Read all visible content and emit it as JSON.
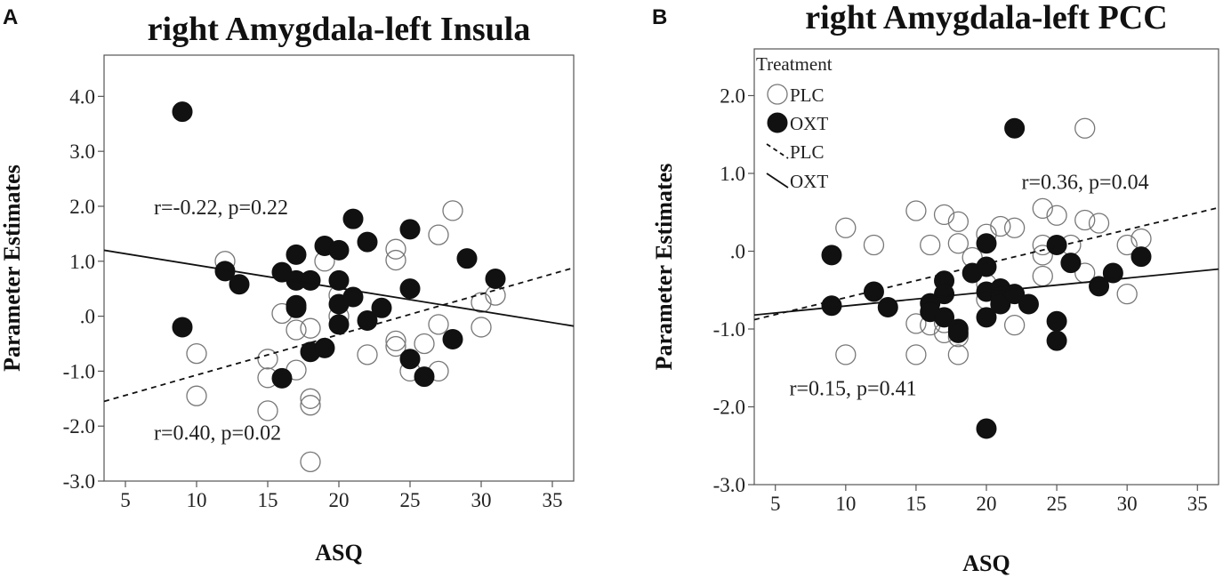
{
  "chart_data": [
    {
      "type": "scatter",
      "panel_label": "A",
      "title": "right Amygdala-left Insula",
      "xlabel": "ASQ",
      "ylabel": "Parameter Estimates",
      "xlim": [
        3.5,
        36.5
      ],
      "ylim": [
        -3.0,
        4.75
      ],
      "xticks": [
        5,
        10,
        15,
        20,
        25,
        30,
        35
      ],
      "xtick_labels": [
        "5",
        "10",
        "15",
        "20",
        "25",
        "30",
        "35"
      ],
      "yticks": [
        4.0,
        3.0,
        2.0,
        1.0,
        0.0,
        -1.0,
        -2.0,
        -3.0
      ],
      "ytick_labels": [
        "4.0",
        "3.0",
        "2.0",
        "1.0",
        ".0",
        "-1.0",
        "-2.0",
        "-3.0"
      ],
      "series": [
        {
          "name": "PLC",
          "marker": "open-circle",
          "points": [
            [
              10,
              -0.68
            ],
            [
              10,
              -1.45
            ],
            [
              12,
              1.0
            ],
            [
              15,
              -0.78
            ],
            [
              15,
              -1.12
            ],
            [
              15,
              -1.72
            ],
            [
              16,
              0.05
            ],
            [
              17,
              -0.25
            ],
            [
              17,
              -0.98
            ],
            [
              18,
              -0.22
            ],
            [
              18,
              -1.5
            ],
            [
              18,
              -1.62
            ],
            [
              18,
              -2.65
            ],
            [
              19,
              1.0
            ],
            [
              20,
              0.38
            ],
            [
              20,
              0.0
            ],
            [
              22,
              -0.7
            ],
            [
              24,
              1.22
            ],
            [
              24,
              1.02
            ],
            [
              24,
              -0.45
            ],
            [
              24,
              -0.55
            ],
            [
              25,
              -1.0
            ],
            [
              26,
              -0.5
            ],
            [
              27,
              1.48
            ],
            [
              27,
              -0.15
            ],
            [
              27,
              -1.0
            ],
            [
              28,
              1.92
            ],
            [
              30,
              0.25
            ],
            [
              30,
              -0.2
            ],
            [
              31,
              0.38
            ]
          ]
        },
        {
          "name": "OXT",
          "marker": "filled-circle",
          "points": [
            [
              9,
              3.72
            ],
            [
              9,
              -0.2
            ],
            [
              12,
              0.82
            ],
            [
              13,
              0.58
            ],
            [
              16,
              0.8
            ],
            [
              16,
              -1.13
            ],
            [
              17,
              1.12
            ],
            [
              17,
              0.65
            ],
            [
              17,
              0.2
            ],
            [
              17,
              0.15
            ],
            [
              18,
              0.65
            ],
            [
              18,
              -0.65
            ],
            [
              19,
              1.28
            ],
            [
              19,
              -0.58
            ],
            [
              20,
              1.2
            ],
            [
              20,
              0.65
            ],
            [
              20,
              0.22
            ],
            [
              20,
              -0.15
            ],
            [
              21,
              1.77
            ],
            [
              21,
              0.35
            ],
            [
              22,
              1.35
            ],
            [
              22,
              -0.08
            ],
            [
              23,
              0.15
            ],
            [
              25,
              1.58
            ],
            [
              25,
              0.5
            ],
            [
              25,
              -0.78
            ],
            [
              26,
              -1.1
            ],
            [
              28,
              -0.42
            ],
            [
              29,
              1.05
            ],
            [
              31,
              0.68
            ]
          ]
        }
      ],
      "fit_lines": [
        {
          "name": "PLC",
          "style": "dashed",
          "x": [
            3.5,
            36.5
          ],
          "y": [
            -1.55,
            0.88
          ]
        },
        {
          "name": "OXT",
          "style": "solid",
          "x": [
            3.5,
            36.5
          ],
          "y": [
            1.2,
            -0.18
          ]
        }
      ],
      "annotations": [
        {
          "text": "r=-0.22, p=0.22",
          "x": 7.0,
          "y": 1.85
        },
        {
          "text": "r=0.40, p=0.02",
          "x": 7.0,
          "y": -2.25
        }
      ]
    },
    {
      "type": "scatter",
      "panel_label": "B",
      "title": "right Amygdala-left PCC",
      "xlabel": "ASQ",
      "ylabel": "Parameter Estimates",
      "xlim": [
        3.5,
        36.5
      ],
      "ylim": [
        -3.0,
        2.6
      ],
      "xticks": [
        5,
        10,
        15,
        20,
        25,
        30,
        35
      ],
      "xtick_labels": [
        "5",
        "10",
        "15",
        "20",
        "25",
        "30",
        "35"
      ],
      "yticks": [
        2.0,
        1.0,
        0.0,
        -1.0,
        -2.0,
        -3.0
      ],
      "ytick_labels": [
        "2.0",
        "1.0",
        ".0",
        "-1.0",
        "-2.0",
        "-3.0"
      ],
      "legend": {
        "title": "Treatment",
        "entries": [
          {
            "label": "PLC",
            "symbol": "open-circle"
          },
          {
            "label": "OXT",
            "symbol": "filled-circle"
          },
          {
            "label": "PLC",
            "symbol": "dashed-line"
          },
          {
            "label": "OXT",
            "symbol": "solid-line"
          }
        ],
        "position": "top-left"
      },
      "series": [
        {
          "name": "PLC",
          "marker": "open-circle",
          "points": [
            [
              10,
              0.3
            ],
            [
              10,
              -1.33
            ],
            [
              12,
              0.08
            ],
            [
              15,
              0.52
            ],
            [
              15,
              -0.93
            ],
            [
              15,
              -1.33
            ],
            [
              16,
              0.08
            ],
            [
              16,
              -0.95
            ],
            [
              17,
              0.47
            ],
            [
              17,
              -0.92
            ],
            [
              17,
              -1.05
            ],
            [
              18,
              0.38
            ],
            [
              18,
              0.1
            ],
            [
              18,
              -1.1
            ],
            [
              18,
              -1.33
            ],
            [
              19,
              -0.08
            ],
            [
              20,
              0.22
            ],
            [
              20,
              -0.42
            ],
            [
              20,
              -0.62
            ],
            [
              21,
              0.32
            ],
            [
              22,
              0.3
            ],
            [
              22,
              -0.95
            ],
            [
              24,
              0.55
            ],
            [
              24,
              0.08
            ],
            [
              24,
              -0.05
            ],
            [
              24,
              -0.32
            ],
            [
              25,
              0.46
            ],
            [
              26,
              0.08
            ],
            [
              27,
              1.58
            ],
            [
              27,
              0.4
            ],
            [
              27,
              -0.28
            ],
            [
              28,
              0.36
            ],
            [
              30,
              0.08
            ],
            [
              30,
              -0.55
            ],
            [
              31,
              0.16
            ]
          ]
        },
        {
          "name": "OXT",
          "marker": "filled-circle",
          "points": [
            [
              9,
              -0.05
            ],
            [
              9,
              -0.7
            ],
            [
              12,
              -0.52
            ],
            [
              13,
              -0.72
            ],
            [
              16,
              -0.67
            ],
            [
              16,
              -0.78
            ],
            [
              17,
              -0.38
            ],
            [
              17,
              -0.55
            ],
            [
              17,
              -0.85
            ],
            [
              18,
              -1.0
            ],
            [
              18,
              -1.05
            ],
            [
              19,
              -0.28
            ],
            [
              20,
              0.1
            ],
            [
              20,
              -0.2
            ],
            [
              20,
              -0.52
            ],
            [
              20,
              -0.85
            ],
            [
              20,
              -2.28
            ],
            [
              21,
              -0.48
            ],
            [
              21,
              -0.58
            ],
            [
              21,
              -0.68
            ],
            [
              22,
              1.58
            ],
            [
              22,
              -0.55
            ],
            [
              23,
              -0.68
            ],
            [
              25,
              0.08
            ],
            [
              25,
              -0.9
            ],
            [
              25,
              -1.15
            ],
            [
              26,
              -0.15
            ],
            [
              28,
              -0.45
            ],
            [
              29,
              -0.28
            ],
            [
              31,
              -0.07
            ]
          ]
        }
      ],
      "fit_lines": [
        {
          "name": "PLC",
          "style": "dashed",
          "x": [
            3.5,
            36.5
          ],
          "y": [
            -0.88,
            0.56
          ]
        },
        {
          "name": "OXT",
          "style": "solid",
          "x": [
            3.5,
            36.5
          ],
          "y": [
            -0.82,
            -0.23
          ]
        }
      ],
      "annotations": [
        {
          "text": "r=0.36, p=0.04",
          "x": 22.5,
          "y": 0.8
        },
        {
          "text": "r=0.15, p=0.41",
          "x": 6.0,
          "y": -1.85
        }
      ]
    }
  ]
}
